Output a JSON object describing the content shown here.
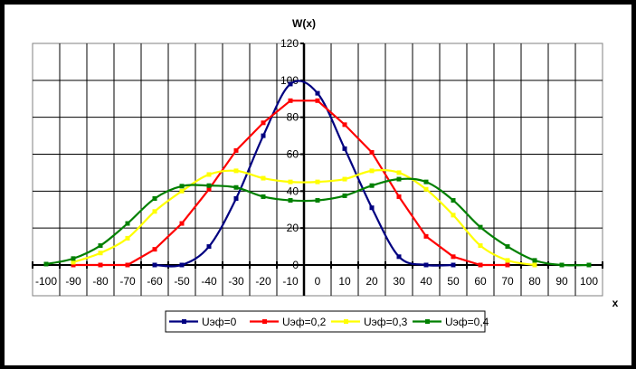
{
  "chart_data": {
    "type": "line",
    "title": "W(x)",
    "xlabel": "x",
    "ylabel": "W(x)",
    "categories": [
      "-100",
      "-90",
      "-80",
      "-70",
      "-60",
      "-50",
      "-40",
      "-30",
      "-20",
      "-10",
      "0",
      "10",
      "20",
      "30",
      "40",
      "50",
      "60",
      "70",
      "80",
      "90",
      "100"
    ],
    "x": [
      -100,
      -90,
      -80,
      -70,
      -60,
      -50,
      -40,
      -30,
      -20,
      -10,
      0,
      10,
      20,
      30,
      40,
      50,
      60,
      70,
      80,
      90,
      100
    ],
    "ylim": [
      0,
      120
    ],
    "yticks": [
      "0",
      "20",
      "40",
      "60",
      "80",
      "100",
      "120"
    ],
    "ytick_values": [
      0,
      20,
      40,
      60,
      80,
      100,
      120
    ],
    "grid": true,
    "legend_position": "bottom",
    "series": [
      {
        "name": "Uэф=0",
        "color": "#000080",
        "smooth": true,
        "values": [
          null,
          null,
          null,
          null,
          0,
          0,
          10,
          36,
          70,
          98,
          93,
          63,
          31,
          4.5,
          0,
          0,
          null,
          null,
          null,
          null,
          null
        ]
      },
      {
        "name": "Uэф=0,2",
        "color": "#FF0000",
        "smooth": false,
        "values": [
          null,
          0,
          0,
          0,
          8.5,
          22.5,
          41,
          62,
          77,
          89,
          89,
          76,
          61,
          37,
          15.5,
          4.5,
          0,
          0,
          null,
          null,
          null
        ]
      },
      {
        "name": "Uэф=0,3",
        "color": "#FFFF00",
        "smooth": true,
        "values": [
          null,
          1.5,
          6.5,
          14.5,
          29,
          40,
          49,
          51,
          47,
          45,
          45,
          46.5,
          51,
          50,
          41,
          27,
          10.5,
          2.5,
          0,
          null,
          null
        ]
      },
      {
        "name": "Uэф=0,4",
        "color": "#008000",
        "smooth": true,
        "values": [
          0.5,
          3.5,
          10.5,
          22.5,
          36,
          42.7,
          43,
          42,
          37,
          35,
          35,
          37.5,
          43,
          46.5,
          45,
          35,
          20.5,
          10,
          2.5,
          0,
          0
        ]
      }
    ]
  }
}
